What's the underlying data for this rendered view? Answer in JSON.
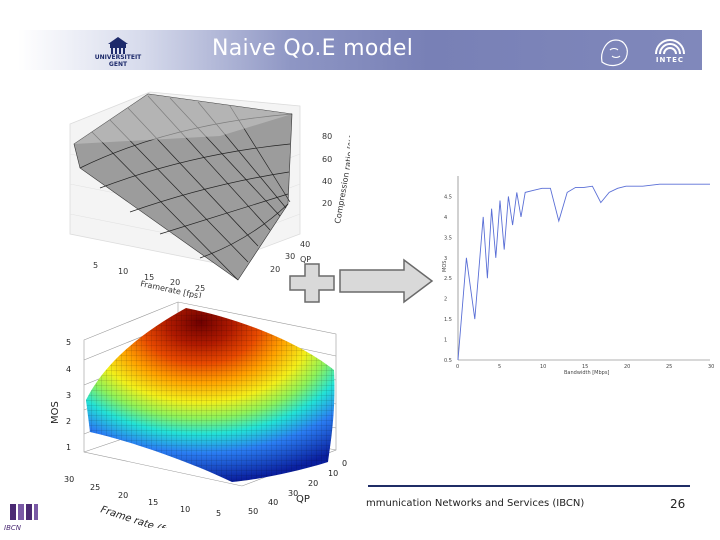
{
  "header": {
    "title": "Naive Qo.E model",
    "logo_left_text": "UNIVERSITEIT GENT",
    "logo_right_text": "INTEC"
  },
  "footer": {
    "text": "mmunication Networks and Services (IBCN)",
    "page_number": "26",
    "logo_text": "IBCN"
  },
  "colors": {
    "banner": "#7880b6",
    "footer_rule": "#1f2d66",
    "line_plot": "#5a6fd6",
    "arrow": "#d9d9d9"
  },
  "icons": {
    "plus": "plus-icon",
    "arrow": "right-arrow-icon"
  },
  "charts": {
    "top_surface": {
      "type": "surface",
      "zlabel": "Compression ratio [%]",
      "xlabel": "Framerate [fps]",
      "ylabel": "QP",
      "z_ticks": [
        "80",
        "60",
        "40",
        "20"
      ],
      "x_ticks": [
        "5",
        "10",
        "15",
        "20",
        "25"
      ],
      "y_ticks": [
        "40",
        "30",
        "20"
      ]
    },
    "bottom_surface": {
      "type": "surface",
      "zlabel": "MOS",
      "xlabel": "Frame rate (fps)",
      "ylabel": "QP",
      "z_ticks": [
        "5",
        "4",
        "3",
        "2",
        "1"
      ],
      "x_ticks": [
        "30",
        "25",
        "20",
        "15",
        "10",
        "5"
      ],
      "y_ticks": [
        "0",
        "10",
        "20",
        "30",
        "40",
        "50"
      ]
    },
    "line_chart": {
      "type": "line",
      "xlabel": "Bandwidth [Mbps]",
      "ylabel": "MOS",
      "x_ticks": [
        "0",
        "5",
        "10",
        "15",
        "20",
        "25",
        "30"
      ],
      "y_ticks": [
        "4.5",
        "4",
        "3.5",
        "3",
        "2.5",
        "2",
        "1.5",
        "1",
        "0.5"
      ],
      "x": [
        0,
        1,
        2,
        3,
        3.5,
        4,
        4.5,
        5,
        5.5,
        6,
        6.5,
        7,
        7.5,
        8,
        9,
        10,
        11,
        12,
        13,
        14,
        15,
        16,
        17,
        18,
        19,
        20,
        22,
        24,
        26,
        28,
        30
      ],
      "y": [
        0.5,
        3.0,
        1.5,
        4.0,
        2.5,
        4.2,
        3.0,
        4.4,
        3.2,
        4.5,
        3.8,
        4.6,
        4.0,
        4.6,
        4.65,
        4.7,
        4.7,
        3.9,
        4.6,
        4.72,
        4.72,
        4.75,
        4.35,
        4.6,
        4.7,
        4.75,
        4.75,
        4.8,
        4.8,
        4.8,
        4.8
      ]
    }
  }
}
